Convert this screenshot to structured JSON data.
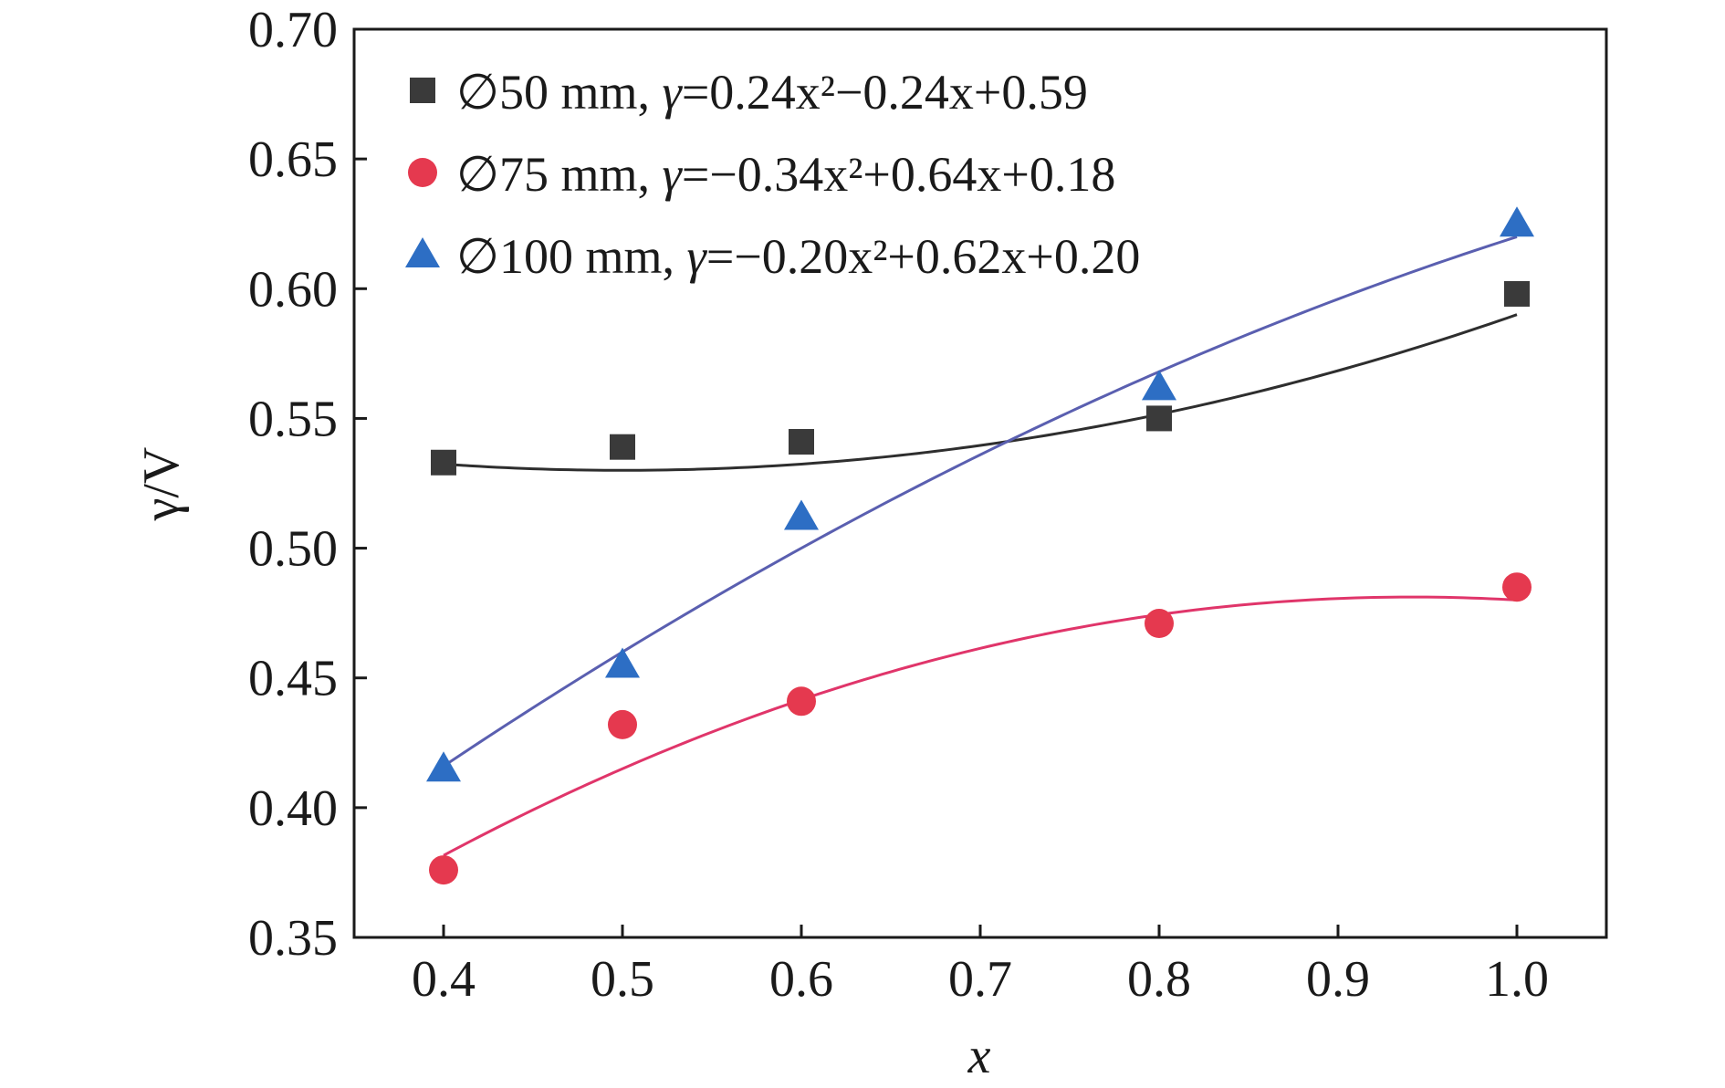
{
  "chart_data": {
    "type": "scatter",
    "xlabel": "x",
    "ylabel": "γ/V",
    "xlim": [
      0.35,
      1.05
    ],
    "ylim": [
      0.35,
      0.7
    ],
    "x_ticks": [
      "0.4",
      "0.5",
      "0.6",
      "0.7",
      "0.8",
      "0.9",
      "1.0"
    ],
    "y_ticks": [
      "0.35",
      "0.40",
      "0.45",
      "0.50",
      "0.55",
      "0.60",
      "0.65",
      "0.70"
    ],
    "grid": false,
    "legend_position": "top-left",
    "series": [
      {
        "key": "d50",
        "label_main": "∅50 mm, ",
        "label_gamma": "γ",
        "label_rest": "=0.24x²−0.24x+0.59",
        "marker": "square",
        "color": "#3a3a3a",
        "line_color": "#2e2e2e",
        "x": [
          0.4,
          0.5,
          0.6,
          0.8,
          1.0
        ],
        "y": [
          0.533,
          0.539,
          0.541,
          0.55,
          0.598
        ],
        "fit": [
          0.24,
          -0.24,
          0.59
        ]
      },
      {
        "key": "d75",
        "label_main": "∅75 mm, ",
        "label_gamma": "γ",
        "label_rest": "=−0.34x²+0.64x+0.18",
        "marker": "circle",
        "color": "#e5394f",
        "line_color": "#e0356a",
        "x": [
          0.4,
          0.5,
          0.6,
          0.8,
          1.0
        ],
        "y": [
          0.376,
          0.432,
          0.441,
          0.471,
          0.485
        ],
        "fit": [
          -0.34,
          0.64,
          0.18
        ]
      },
      {
        "key": "d100",
        "label_main": "∅100 mm, ",
        "label_gamma": "γ",
        "label_rest": "=−0.20x²+0.62x+0.20",
        "marker": "triangle",
        "color": "#2d6ec4",
        "line_color": "#5a5fb0",
        "x": [
          0.4,
          0.5,
          0.6,
          0.8,
          1.0
        ],
        "y": [
          0.415,
          0.455,
          0.512,
          0.562,
          0.625
        ],
        "fit": [
          -0.2,
          0.62,
          0.2
        ]
      }
    ]
  }
}
